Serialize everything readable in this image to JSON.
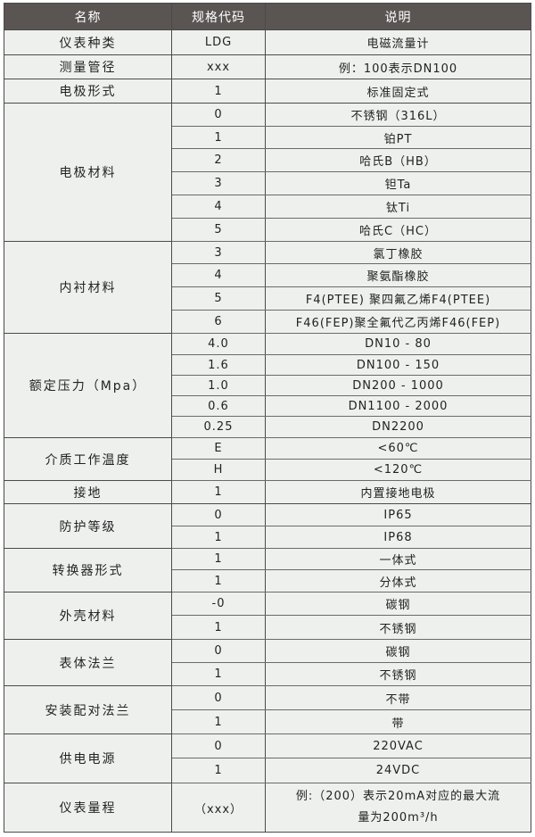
{
  "header": {
    "name": "名称",
    "code": "规格代码",
    "desc": "说明"
  },
  "colors": {
    "header_bg": "#5a5553",
    "body_bg": "#eef0ee",
    "border": "#4a4a4a"
  },
  "groups": [
    {
      "name": "仪表种类",
      "rows": [
        {
          "code": "LDG",
          "desc": "电磁流量计"
        }
      ]
    },
    {
      "name": "测量管径",
      "rows": [
        {
          "code": "xxx",
          "desc": "例：100表示DN100"
        }
      ]
    },
    {
      "name": "电极形式",
      "rows": [
        {
          "code": "1",
          "desc": "标准固定式"
        }
      ]
    },
    {
      "name": "电极材料",
      "rows": [
        {
          "code": "0",
          "desc": "不锈钢（316L）"
        },
        {
          "code": "1",
          "desc": "铂PT"
        },
        {
          "code": "2",
          "desc": "哈氏B（HB）"
        },
        {
          "code": "3",
          "desc": "钽Ta"
        },
        {
          "code": "4",
          "desc": "钛Ti"
        },
        {
          "code": "5",
          "desc": "哈氏C（HC）"
        }
      ]
    },
    {
      "name": "内衬材料",
      "rows": [
        {
          "code": "3",
          "desc": "氯丁橡胶"
        },
        {
          "code": "4",
          "desc": "聚氨酯橡胶"
        },
        {
          "code": "5",
          "desc": "F4(PTEE) 聚四氟乙烯F4(PTEE)"
        },
        {
          "code": "6",
          "desc": "F46(FEP)聚全氟代乙丙烯F46(FEP)"
        }
      ]
    },
    {
      "name": "额定压力（Mpa）",
      "rows": [
        {
          "code": "4.0",
          "desc": "DN10 - 80"
        },
        {
          "code": "1.6",
          "desc": "DN100 - 150"
        },
        {
          "code": "1.0",
          "desc": "DN200 - 1000"
        },
        {
          "code": "0.6",
          "desc": "DN1100 - 2000"
        },
        {
          "code": "0.25",
          "desc": "DN2200"
        }
      ]
    },
    {
      "name": "介质工作温度",
      "rows": [
        {
          "code": "E",
          "desc": "<60℃"
        },
        {
          "code": "H",
          "desc": "<120℃"
        }
      ]
    },
    {
      "name": "接地",
      "rows": [
        {
          "code": "1",
          "desc": "内置接地电极"
        }
      ]
    },
    {
      "name": "防护等级",
      "rows": [
        {
          "code": "0",
          "desc": "IP65"
        },
        {
          "code": "1",
          "desc": "IP68"
        }
      ]
    },
    {
      "name": "转换器形式",
      "rows": [
        {
          "code": "1",
          "desc": "一体式"
        },
        {
          "code": "1",
          "desc": "分体式"
        }
      ]
    },
    {
      "name": "外壳材料",
      "rows": [
        {
          "code": "-0",
          "desc": "碳钢"
        },
        {
          "code": "1",
          "desc": "不锈钢"
        }
      ]
    },
    {
      "name": "表体法兰",
      "rows": [
        {
          "code": "0",
          "desc": "碳钢"
        },
        {
          "code": "1",
          "desc": "不锈钢"
        }
      ]
    },
    {
      "name": "安装配对法兰",
      "rows": [
        {
          "code": "0",
          "desc": "不带"
        },
        {
          "code": "1",
          "desc": "带"
        }
      ]
    },
    {
      "name": "供电电源",
      "rows": [
        {
          "code": "0",
          "desc": "220VAC"
        },
        {
          "code": "1",
          "desc": "24VDC"
        }
      ]
    },
    {
      "name": "仪表量程",
      "rows": [
        {
          "code": "（xxx）",
          "desc": "例:（200）表示20mA对应的最大流量为200m³/h"
        }
      ]
    }
  ]
}
